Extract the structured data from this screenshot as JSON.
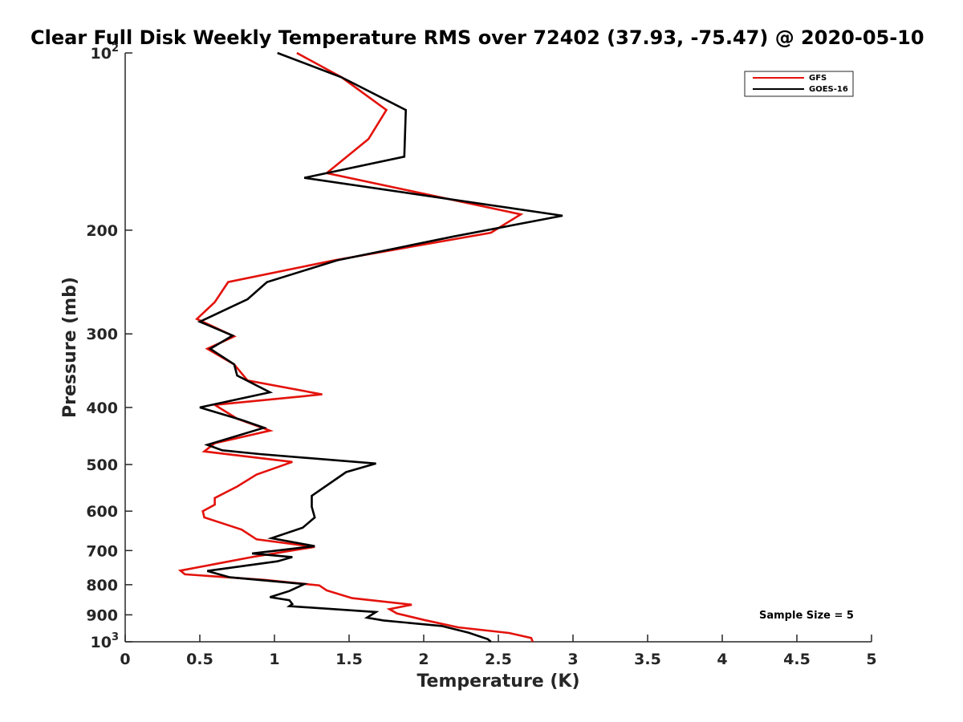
{
  "chart_data": {
    "type": "line",
    "title": "Clear Full Disk Weekly Temperature RMS over 72402 (37.93, -75.47) @ 2020-05-10",
    "xlabel": "Temperature (K)",
    "ylabel": "Pressure (mb)",
    "xlim": [
      0,
      5
    ],
    "ylim": [
      100,
      1000
    ],
    "yscale": "log",
    "y_reversed": true,
    "x_ticks": [
      0,
      0.5,
      1,
      1.5,
      2,
      2.5,
      3,
      3.5,
      4,
      4.5,
      5
    ],
    "x_tick_labels": [
      "0",
      "0.5",
      "1",
      "1.5",
      "2",
      "2.5",
      "3",
      "3.5",
      "4",
      "4.5",
      "5"
    ],
    "y_ticks": [
      {
        "value": 100,
        "base": "10",
        "exp": "2",
        "label": ""
      },
      {
        "value": 200,
        "label": "200"
      },
      {
        "value": 300,
        "label": "300"
      },
      {
        "value": 400,
        "label": "400"
      },
      {
        "value": 500,
        "label": "500"
      },
      {
        "value": 600,
        "label": "600"
      },
      {
        "value": 700,
        "label": "700"
      },
      {
        "value": 800,
        "label": "800"
      },
      {
        "value": 900,
        "label": "900"
      },
      {
        "value": 1000,
        "base": "10",
        "exp": "3",
        "label": ""
      }
    ],
    "legend_position": "top-right",
    "annotation": "Sample Size = 5",
    "series": [
      {
        "name": "GFS",
        "color": "#e3120b",
        "points": [
          [
            1.15,
            100
          ],
          [
            1.45,
            110
          ],
          [
            1.75,
            125
          ],
          [
            1.63,
            140
          ],
          [
            1.35,
            160
          ],
          [
            2.65,
            188
          ],
          [
            2.45,
            202
          ],
          [
            1.4,
            225
          ],
          [
            0.69,
            245
          ],
          [
            0.6,
            265
          ],
          [
            0.48,
            283
          ],
          [
            0.73,
            303
          ],
          [
            0.55,
            318
          ],
          [
            0.73,
            338
          ],
          [
            0.82,
            360
          ],
          [
            1.32,
            380
          ],
          [
            0.6,
            396
          ],
          [
            0.75,
            418
          ],
          [
            0.97,
            438
          ],
          [
            0.6,
            460
          ],
          [
            0.53,
            475
          ],
          [
            1.12,
            495
          ],
          [
            0.88,
            520
          ],
          [
            0.75,
            545
          ],
          [
            0.6,
            570
          ],
          [
            0.6,
            585
          ],
          [
            0.52,
            600
          ],
          [
            0.53,
            615
          ],
          [
            0.78,
            645
          ],
          [
            0.88,
            670
          ],
          [
            1.27,
            690
          ],
          [
            0.85,
            718
          ],
          [
            0.6,
            738
          ],
          [
            0.37,
            757
          ],
          [
            0.4,
            768
          ],
          [
            0.93,
            785
          ],
          [
            1.3,
            802
          ],
          [
            1.35,
            818
          ],
          [
            1.52,
            843
          ],
          [
            1.92,
            865
          ],
          [
            1.77,
            880
          ],
          [
            1.82,
            895
          ],
          [
            2.0,
            918
          ],
          [
            2.23,
            945
          ],
          [
            2.57,
            966
          ],
          [
            2.72,
            985
          ],
          [
            2.73,
            1000
          ]
        ]
      },
      {
        "name": "GOES-16",
        "color": "#000000",
        "points": [
          [
            1.02,
            100
          ],
          [
            1.45,
            110
          ],
          [
            1.88,
            125
          ],
          [
            1.87,
            150
          ],
          [
            1.2,
            163
          ],
          [
            2.93,
            189
          ],
          [
            2.2,
            205
          ],
          [
            1.42,
            225
          ],
          [
            0.95,
            245
          ],
          [
            0.82,
            262
          ],
          [
            0.5,
            286
          ],
          [
            0.72,
            302
          ],
          [
            0.57,
            318
          ],
          [
            0.73,
            338
          ],
          [
            0.75,
            353
          ],
          [
            0.97,
            377
          ],
          [
            0.5,
            400
          ],
          [
            0.78,
            420
          ],
          [
            0.93,
            433
          ],
          [
            0.55,
            463
          ],
          [
            0.65,
            473
          ],
          [
            0.9,
            480
          ],
          [
            1.68,
            498
          ],
          [
            1.48,
            515
          ],
          [
            1.25,
            565
          ],
          [
            1.25,
            590
          ],
          [
            1.27,
            615
          ],
          [
            1.19,
            640
          ],
          [
            0.98,
            667
          ],
          [
            1.27,
            688
          ],
          [
            0.85,
            708
          ],
          [
            1.12,
            718
          ],
          [
            1.02,
            730
          ],
          [
            0.55,
            758
          ],
          [
            0.7,
            777
          ],
          [
            1.2,
            798
          ],
          [
            1.1,
            820
          ],
          [
            0.97,
            840
          ],
          [
            1.1,
            850
          ],
          [
            1.12,
            863
          ],
          [
            1.1,
            870
          ],
          [
            1.68,
            890
          ],
          [
            1.62,
            910
          ],
          [
            1.73,
            920
          ],
          [
            2.12,
            940
          ],
          [
            2.3,
            965
          ],
          [
            2.43,
            990
          ],
          [
            2.45,
            1000
          ]
        ]
      }
    ]
  }
}
